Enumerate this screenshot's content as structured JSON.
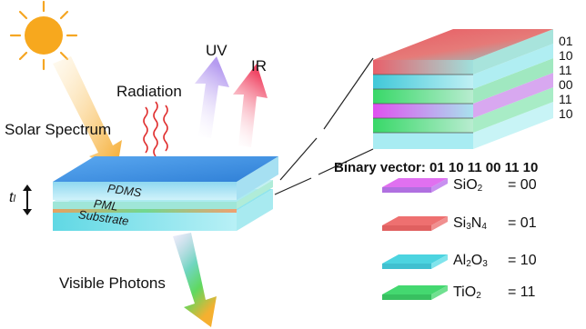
{
  "labels": {
    "solar_spectrum": "Solar Spectrum",
    "radiation": "Radiation",
    "uv": "UV",
    "ir": "IR",
    "visible_photons": "Visible Photons",
    "thickness": "t",
    "thickness_sub": "l"
  },
  "layers": {
    "pdms": "PDMS",
    "pml": "PML",
    "substrate": "Substrate"
  },
  "binary_vector": "Binary vector: 01 10 11 00 11 10",
  "stack_codes": [
    "01",
    "10",
    "11",
    "00",
    "11",
    "10"
  ],
  "legend": [
    {
      "formula": "SiO",
      "sub1": "2",
      "sub2": "",
      "code": "= 00",
      "colors": [
        "#e050f0",
        "#9fd8e8"
      ]
    },
    {
      "formula": "Si",
      "sub1": "3",
      "mid": "N",
      "sub2": "4",
      "code": "= 01",
      "colors": [
        "#e8606a",
        "#a0dcd8"
      ]
    },
    {
      "formula": "Al",
      "sub1": "2",
      "mid": "O",
      "sub2": "3",
      "code": "= 10",
      "colors": [
        "#40c8d8",
        "#b0eef0"
      ]
    },
    {
      "formula": "TiO",
      "sub1": "2",
      "sub2": "",
      "code": "= 11",
      "colors": [
        "#30d860",
        "#a0e8c0"
      ]
    }
  ],
  "colors": {
    "pdms_top": "#3d8fe0",
    "sio2": "#e050f0",
    "si3n4": "#e8606a",
    "al2o3": "#40c8d8",
    "tio2": "#30d860",
    "sun": "#f5a623"
  },
  "icons": [
    "sun-icon",
    "wavy-radiation-icon",
    "uv-arrow-icon",
    "ir-arrow-icon",
    "solar-arrow-icon",
    "visible-arrow-icon",
    "double-arrow-icon"
  ]
}
